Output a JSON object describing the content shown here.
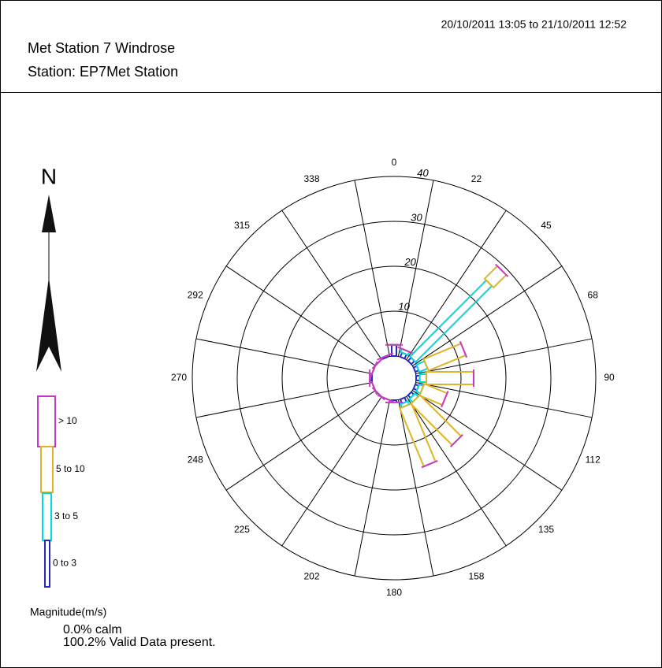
{
  "chart_data": {
    "type": "windrose",
    "date_range": "20/10/2011 13:05 to 21/10/2011 12:52",
    "title": "Met Station 7 Windrose",
    "subtitle": "Station: EP7Met Station",
    "categories": [
      "0",
      "22",
      "45",
      "68",
      "90",
      "112",
      "135",
      "158",
      "180",
      "202",
      "225",
      "248",
      "270",
      "292",
      "315",
      "338"
    ],
    "series": [
      {
        "name": "0 to 3",
        "color": "#2828c8",
        "values": [
          2.5,
          1,
          1,
          0.8,
          0.8,
          0.8,
          0.8,
          1,
          0.5,
          0,
          0,
          0,
          0.5,
          0,
          0,
          0.3
        ]
      },
      {
        "name": "3 to 5",
        "color": "#00d8e0",
        "values": [
          0,
          0.8,
          24,
          2,
          1.5,
          1,
          1,
          0.8,
          0,
          0,
          0,
          0,
          0,
          0,
          0,
          0
        ]
      },
      {
        "name": "5 to 10",
        "color": "#e0b428",
        "values": [
          0,
          0,
          4,
          9,
          10.5,
          5.5,
          13,
          14,
          0,
          0,
          0,
          0,
          0,
          0,
          0,
          0
        ]
      },
      {
        "name": "> 10",
        "color": "#c838c8",
        "values": [
          0,
          0,
          0,
          0,
          0,
          0,
          0,
          0,
          0,
          0,
          0,
          0,
          0,
          0,
          0,
          0
        ]
      }
    ],
    "rlim": [
      0,
      40
    ],
    "rticks": [
      10,
      20,
      30,
      40
    ],
    "north_label": "N",
    "legend_title": "Magnitude(m/s)",
    "notes": [
      "0.0% calm",
      "100.2% Valid Data present."
    ]
  }
}
